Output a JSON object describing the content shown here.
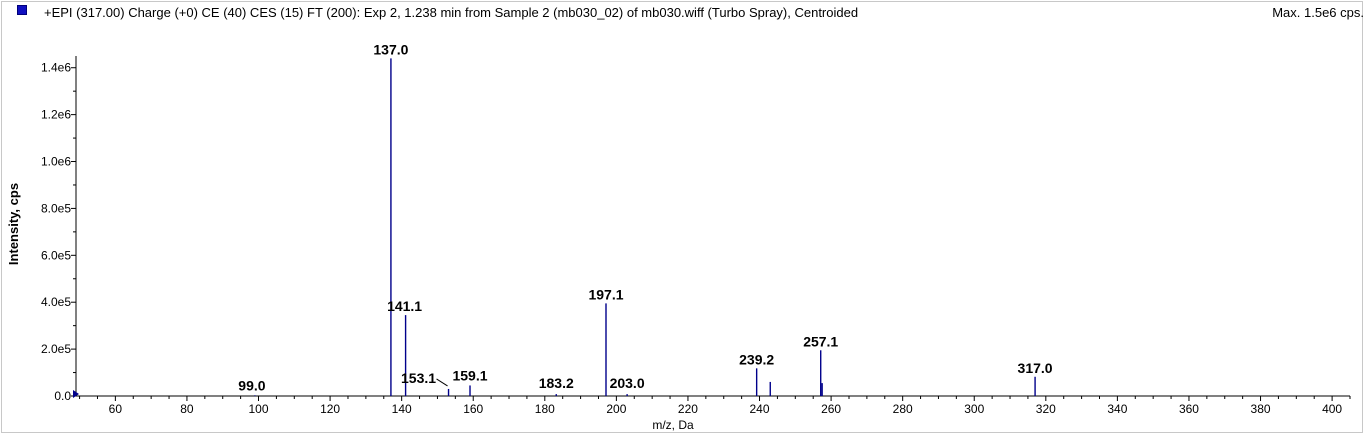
{
  "header": {
    "title": "+EPI (317.00) Charge (+0) CE (40) CES (15) FT (200): Exp 2, 1.238 min from Sample 2 (mb030_02) of mb030.wiff (Turbo Spray), Centroided",
    "max_label": "Max. 1.5e6 cps."
  },
  "colors": {
    "peak": "#00008b",
    "axis": "#000000",
    "swatch": "#1010c0"
  },
  "chart_data": {
    "type": "bar",
    "xlabel": "m/z, Da",
    "ylabel": "Intensity, cps",
    "xlim": [
      49,
      405
    ],
    "ylim": [
      0,
      1450000
    ],
    "x_ticks": [
      60,
      80,
      100,
      120,
      140,
      160,
      180,
      200,
      220,
      240,
      260,
      280,
      300,
      320,
      340,
      360,
      380,
      400
    ],
    "x_tick_labels": [
      "60",
      "80",
      "100",
      "120",
      "140",
      "160",
      "180",
      "200",
      "220",
      "240",
      "260",
      "280",
      "300",
      "320",
      "340",
      "360",
      "380",
      "400"
    ],
    "y_ticks": [
      0,
      200000,
      400000,
      600000,
      800000,
      1000000,
      1200000,
      1400000
    ],
    "y_tick_labels": [
      "0.0",
      "2.0e5",
      "4.0e5",
      "6.0e5",
      "8.0e5",
      "1.0e6",
      "1.2e6",
      "1.4e6"
    ],
    "grid": false,
    "series": [
      {
        "points": [
          {
            "mz": 99.0,
            "intensity": 3000,
            "label": "99.0"
          },
          {
            "mz": 137.0,
            "intensity": 1440000,
            "label": "137.0"
          },
          {
            "mz": 141.1,
            "intensity": 345000,
            "label": "141.1"
          },
          {
            "mz": 153.1,
            "intensity": 30000,
            "label": "153.1"
          },
          {
            "mz": 159.1,
            "intensity": 45000,
            "label": "159.1"
          },
          {
            "mz": 183.2,
            "intensity": 8000,
            "label": "183.2"
          },
          {
            "mz": 197.1,
            "intensity": 395000,
            "label": "197.1"
          },
          {
            "mz": 203.0,
            "intensity": 8000,
            "label": "203.0"
          },
          {
            "mz": 239.2,
            "intensity": 118000,
            "label": "239.2"
          },
          {
            "mz": 243.0,
            "intensity": 60000,
            "label": ""
          },
          {
            "mz": 257.1,
            "intensity": 195000,
            "label": "257.1"
          },
          {
            "mz": 257.5,
            "intensity": 55000,
            "label": ""
          },
          {
            "mz": 317.0,
            "intensity": 82000,
            "label": "317.0"
          }
        ]
      }
    ]
  }
}
